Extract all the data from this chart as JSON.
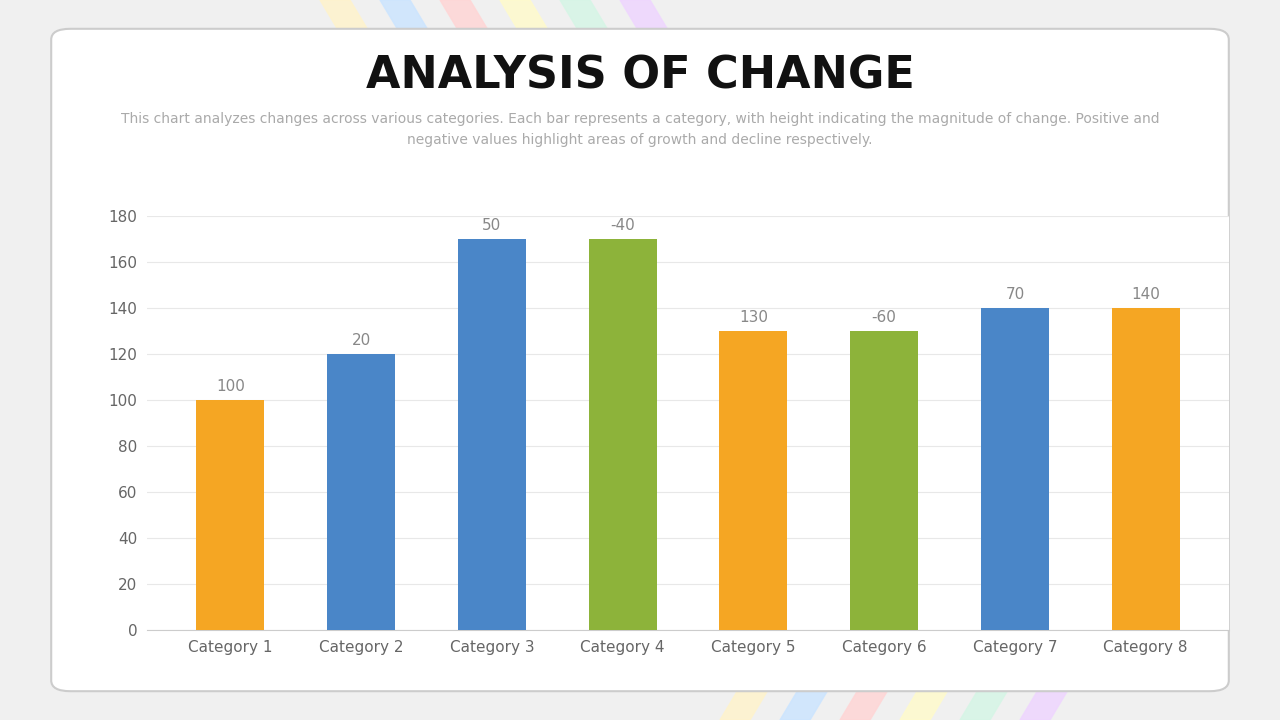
{
  "title": "ANALYSIS OF CHANGE",
  "subtitle": "This chart analyzes changes across various categories. Each bar represents a category, with height indicating the magnitude of change. Positive and\nnegative values highlight areas of growth and decline respectively.",
  "categories": [
    "Category 1",
    "Category 2",
    "Category 3",
    "Category 4",
    "Category 5",
    "Category 6",
    "Category 7",
    "Category 8"
  ],
  "values": [
    100,
    120,
    170,
    170,
    130,
    130,
    140,
    140
  ],
  "bar_labels": [
    "100",
    "20",
    "50",
    "-40",
    "130",
    "-60",
    "70",
    "140"
  ],
  "bar_colors": [
    "#F5A623",
    "#4A86C8",
    "#4A86C8",
    "#8DB33A",
    "#F5A623",
    "#8DB33A",
    "#4A86C8",
    "#F5A623"
  ],
  "ylim": [
    0,
    180
  ],
  "yticks": [
    0,
    20,
    40,
    60,
    80,
    100,
    120,
    140,
    160,
    180
  ],
  "grid_color": "#E8E8E8",
  "title_fontsize": 32,
  "subtitle_fontsize": 10,
  "subtitle_color": "#AAAAAA",
  "tick_fontsize": 11,
  "bar_label_fontsize": 11,
  "bar_label_color": "#888888",
  "axis_label_color": "#666666",
  "stripe_colors_top": [
    "#FFF3CC",
    "#CCE5FF",
    "#FFD6D6",
    "#FFFACC",
    "#D6F5E6",
    "#EED6FF"
  ],
  "stripe_colors_bottom": [
    "#FFF3CC",
    "#CCE5FF",
    "#FFD6D6",
    "#FFFACC",
    "#D6F5E6",
    "#EED6FF"
  ]
}
